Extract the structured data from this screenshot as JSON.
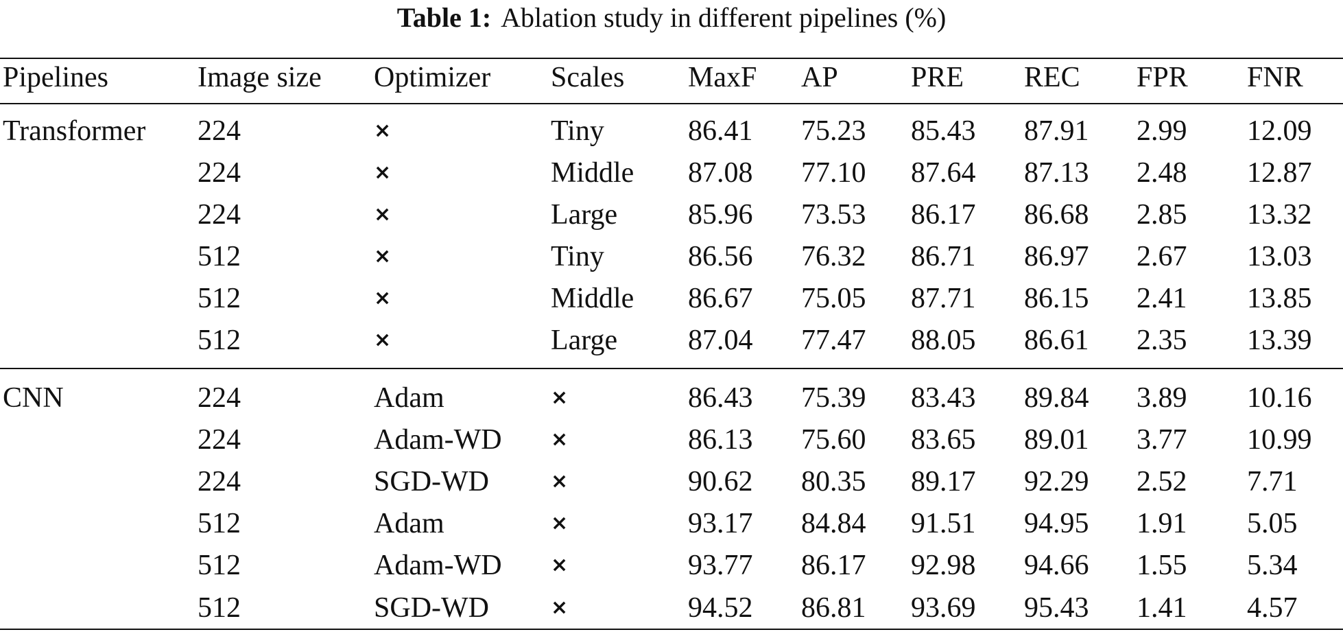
{
  "caption": {
    "label": "Table 1:",
    "text": "Ablation study in different pipelines (%)"
  },
  "table": {
    "columns": [
      "Pipelines",
      "Image size",
      "Optimizer",
      "Scales",
      "MaxF",
      "AP",
      "PRE",
      "REC",
      "FPR",
      "FNR"
    ],
    "cross_symbol": "×",
    "groups": [
      {
        "name": "Transformer",
        "rows": [
          [
            "224",
            "×",
            "Tiny",
            "86.41",
            "75.23",
            "85.43",
            "87.91",
            "2.99",
            "12.09"
          ],
          [
            "224",
            "×",
            "Middle",
            "87.08",
            "77.10",
            "87.64",
            "87.13",
            "2.48",
            "12.87"
          ],
          [
            "224",
            "×",
            "Large",
            "85.96",
            "73.53",
            "86.17",
            "86.68",
            "2.85",
            "13.32"
          ],
          [
            "512",
            "×",
            "Tiny",
            "86.56",
            "76.32",
            "86.71",
            "86.97",
            "2.67",
            "13.03"
          ],
          [
            "512",
            "×",
            "Middle",
            "86.67",
            "75.05",
            "87.71",
            "86.15",
            "2.41",
            "13.85"
          ],
          [
            "512",
            "×",
            "Large",
            "87.04",
            "77.47",
            "88.05",
            "86.61",
            "2.35",
            "13.39"
          ]
        ]
      },
      {
        "name": "CNN",
        "rows": [
          [
            "224",
            "Adam",
            "×",
            "86.43",
            "75.39",
            "83.43",
            "89.84",
            "3.89",
            "10.16"
          ],
          [
            "224",
            "Adam-WD",
            "×",
            "86.13",
            "75.60",
            "83.65",
            "89.01",
            "3.77",
            "10.99"
          ],
          [
            "224",
            "SGD-WD",
            "×",
            "90.62",
            "80.35",
            "89.17",
            "92.29",
            "2.52",
            "7.71"
          ],
          [
            "512",
            "Adam",
            "×",
            "93.17",
            "84.84",
            "91.51",
            "94.95",
            "1.91",
            "5.05"
          ],
          [
            "512",
            "Adam-WD",
            "×",
            "93.77",
            "86.17",
            "92.98",
            "94.66",
            "1.55",
            "5.34"
          ],
          [
            "512",
            "SGD-WD",
            "×",
            "94.52",
            "86.81",
            "93.69",
            "95.43",
            "1.41",
            "4.57"
          ]
        ]
      }
    ]
  }
}
